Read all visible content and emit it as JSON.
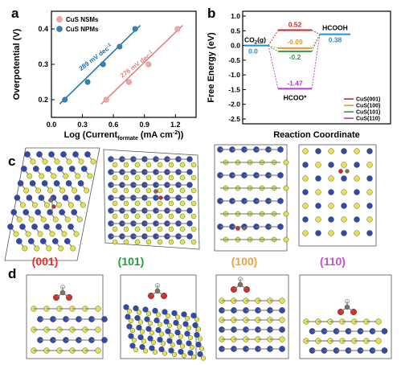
{
  "panel_labels": {
    "a": "a",
    "b": "b",
    "c": "c",
    "d": "d"
  },
  "chart_data": [
    {
      "type": "scatter",
      "panel": "a",
      "xlabel_main": "Log (Current",
      "xlabel_sub": "formate",
      "xlabel_unit": " (mA cm",
      "xlabel_sup": "-2",
      "xlabel_end": "))",
      "ylabel": "Overpotential (V)",
      "xlim": [
        0.0,
        1.4
      ],
      "ylim": [
        0.15,
        0.45
      ],
      "xticks": [
        0.0,
        0.3,
        0.6,
        0.9,
        1.2
      ],
      "xtick_labels": [
        "0.0",
        "0.3",
        "0.6",
        "0.9",
        "1.2"
      ],
      "yticks": [
        0.2,
        0.3,
        0.4
      ],
      "ytick_labels": [
        "0.2",
        "0.3",
        "0.4"
      ],
      "legend_position": "top-left",
      "series": [
        {
          "name": "CuS NSMs",
          "color": "#e07f7f",
          "marker_fill": "#f0a9a9",
          "x": [
            0.53,
            0.75,
            0.94,
            1.22
          ],
          "y": [
            0.2,
            0.25,
            0.3,
            0.4
          ],
          "fit": [
            [
              0.48,
              0.187
            ],
            [
              1.27,
              0.41
            ]
          ],
          "annotation": {
            "pre": "276 mV dec",
            "sup": "-1",
            "x": 0.84,
            "y": 0.295,
            "angle": -37
          }
        },
        {
          "name": "CuS NPMs",
          "color": "#1f6fa8",
          "marker_fill": "#3c7fb5",
          "x": [
            0.13,
            0.35,
            0.5,
            0.66,
            0.81
          ],
          "y": [
            0.2,
            0.25,
            0.3,
            0.35,
            0.4
          ],
          "fit": [
            [
              0.08,
              0.188
            ],
            [
              0.86,
              0.41
            ]
          ],
          "annotation": {
            "pre": "289 mV dec",
            "sup": "-1",
            "x": 0.44,
            "y": 0.315,
            "angle": -37
          }
        }
      ]
    },
    {
      "type": "line",
      "panel": "b",
      "xlabel": "Reaction Coordinate",
      "ylabel": "Free Energy (eV)",
      "ylim": [
        -2.5,
        1.0
      ],
      "yticks": [
        1.0,
        0.5,
        0.0,
        -0.5,
        -1.0,
        -1.5,
        -2.0,
        -2.5
      ],
      "ytick_labels": [
        "1.0",
        "0.5",
        "0.0",
        "-0.5",
        "-1.0",
        "-1.5",
        "-2.0",
        "-2.5"
      ],
      "states": {
        "initial": "CO2(g)",
        "final": "HCOOH",
        "intermediate": "HCOO*"
      },
      "initial_value": 0.0,
      "final_value": 0.38,
      "initial_value_label": "0.0",
      "final_value_label": "0.38",
      "legend_position": "bottom-right",
      "series": [
        {
          "name": "CuS(001)",
          "color": "#c62828",
          "value": 0.52,
          "label": "0.52"
        },
        {
          "name": "CuS(100)",
          "color": "#e89a2c",
          "value": -0.09,
          "label": "-0.09"
        },
        {
          "name": "CuS(101)",
          "color": "#2e9a47",
          "value": -0.2,
          "label": "-0.2"
        },
        {
          "name": "CuS(110)",
          "color": "#b33fcf",
          "value": -1.47,
          "label": "-1.47"
        }
      ]
    }
  ],
  "panel_c": {
    "labels": [
      {
        "text": "(001)",
        "color": "#e8302c"
      },
      {
        "text": "(101)",
        "color": "#1f9e3a"
      },
      {
        "text": "(100)",
        "color": "#f0a040"
      },
      {
        "text": "(110)",
        "color": "#c64fd6"
      }
    ]
  },
  "colors": {
    "cu_atom": "#2f4aa8",
    "s_atom": "#e3e34a",
    "o_atom": "#d42a2a",
    "c_atom": "#8a6a52",
    "h_atom": "#e8e8e8"
  }
}
